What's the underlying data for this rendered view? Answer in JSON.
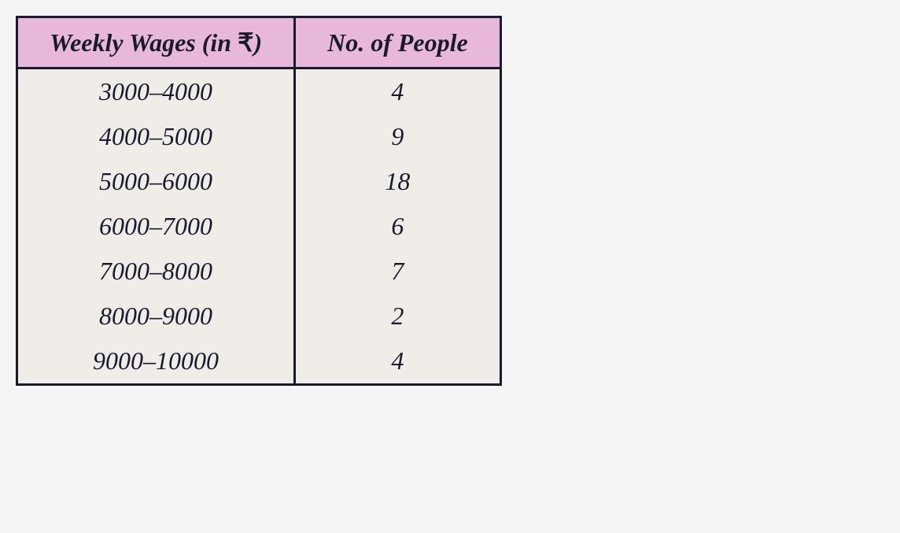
{
  "table": {
    "type": "table",
    "header_bg_color": "#e8b8d8",
    "body_bg_color": "#f0ede8",
    "border_color": "#1a1a2e",
    "border_width": 3,
    "text_color": "#1a1a2e",
    "font_style": "italic",
    "header_fontsize": 32,
    "cell_fontsize": 32,
    "columns": [
      {
        "label_prefix": "Weekly Wages (in ",
        "label_symbol": "₹",
        "label_suffix": ")",
        "align": "center"
      },
      {
        "label": "No. of People",
        "align": "center"
      }
    ],
    "rows": [
      {
        "wages": "3000–4000",
        "people": "4"
      },
      {
        "wages": "4000–5000",
        "people": "9"
      },
      {
        "wages": "5000–6000",
        "people": "18"
      },
      {
        "wages": "6000–7000",
        "people": "6"
      },
      {
        "wages": "7000–8000",
        "people": "7"
      },
      {
        "wages": "8000–9000",
        "people": "2"
      },
      {
        "wages": "9000–10000",
        "people": "4"
      }
    ]
  }
}
